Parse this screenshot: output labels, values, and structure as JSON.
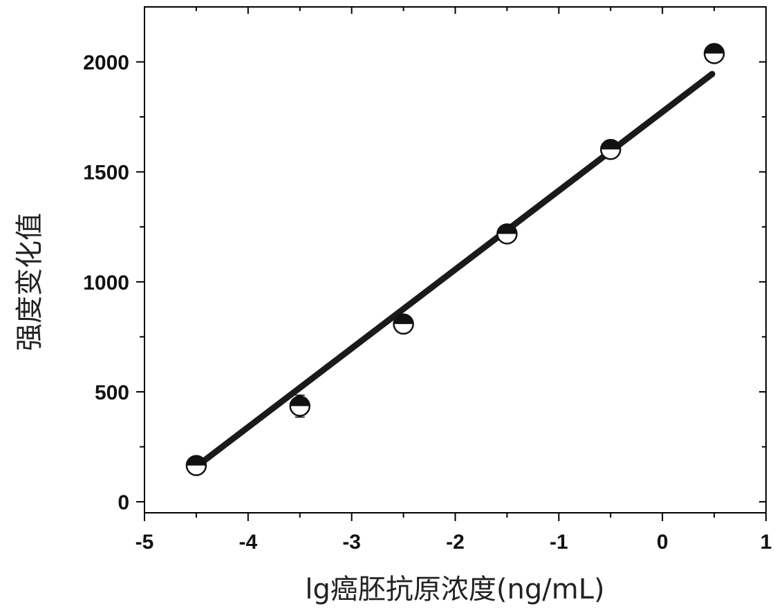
{
  "chart_data": {
    "type": "scatter",
    "xlabel": "lg癌胚抗原浓度(ng/mL)",
    "ylabel": "强度变化值",
    "xlim": [
      -5,
      1
    ],
    "ylim": [
      -50,
      2250
    ],
    "x_ticks": [
      -5,
      -4,
      -3,
      -2,
      -1,
      0,
      1
    ],
    "x_tick_labels": [
      "-5",
      "-4",
      "-3",
      "-2",
      "-1",
      "0",
      "1"
    ],
    "y_ticks": [
      0,
      500,
      1000,
      1500,
      2000
    ],
    "y_tick_labels": [
      "0",
      "500",
      "1000",
      "1500",
      "2000"
    ],
    "grid": false,
    "series": [
      {
        "x": [
          -4.5,
          -3.5,
          -2.5,
          -1.5,
          -0.5,
          0.5
        ],
        "y": [
          165,
          435,
          808,
          1218,
          1602,
          2038
        ],
        "error": [
          15,
          50,
          20,
          22,
          38,
          15
        ]
      }
    ],
    "fit_line": {
      "x": [
        -4.5,
        0.48
      ],
      "y": [
        160,
        1945
      ]
    },
    "colors": {
      "marker": "#111111",
      "marker_fill_half": "#ffffff",
      "line": "#1a1a1a",
      "axis": "#000000"
    }
  }
}
